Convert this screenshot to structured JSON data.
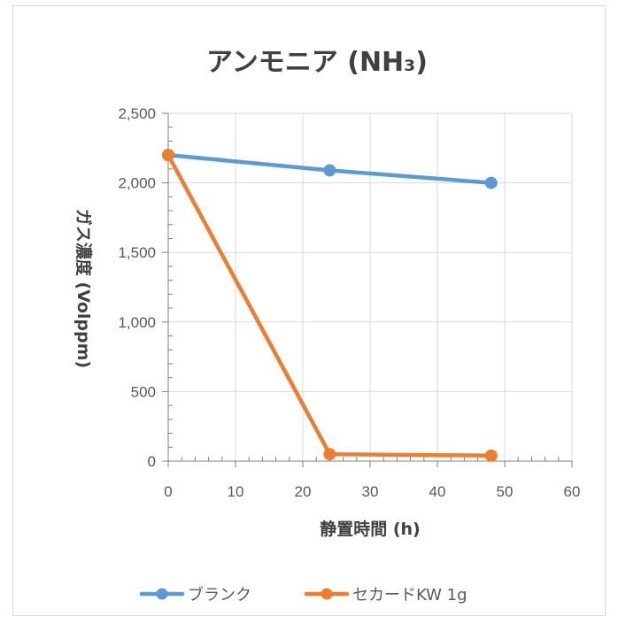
{
  "chart_data": {
    "type": "line",
    "title": "アンモニア (NH₃)",
    "xlabel": "静置時間 (h)",
    "ylabel": "ガス濃度 (Volppm)",
    "xlim": [
      0,
      60
    ],
    "ylim": [
      0,
      2500
    ],
    "x_ticks": [
      0,
      10,
      20,
      30,
      40,
      50,
      60
    ],
    "x_tick_labels": [
      "0",
      "10",
      "20",
      "30",
      "40",
      "50",
      "60"
    ],
    "y_ticks": [
      0,
      500,
      1000,
      1500,
      2000,
      2500
    ],
    "y_tick_labels": [
      "0",
      "500",
      "1,000",
      "1,500",
      "2,000",
      "2,500"
    ],
    "grid": true,
    "legend_position": "bottom",
    "series": [
      {
        "name": "ブランク",
        "color": "#5b9bd5",
        "x": [
          0,
          24,
          48
        ],
        "y": [
          2200,
          2090,
          2000
        ]
      },
      {
        "name": "セカードKW 1g",
        "color": "#ed7d31",
        "x": [
          0,
          24,
          48
        ],
        "y": [
          2200,
          50,
          40
        ]
      }
    ]
  }
}
